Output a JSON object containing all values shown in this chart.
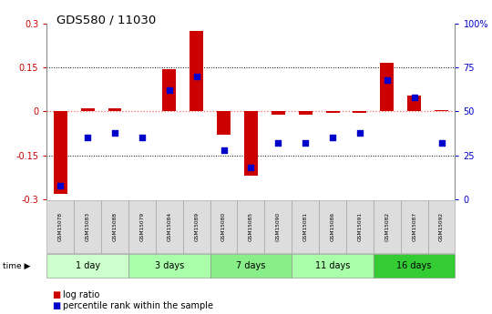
{
  "title": "GDS580 / 11030",
  "samples": [
    "GSM15078",
    "GSM15083",
    "GSM15088",
    "GSM15079",
    "GSM15084",
    "GSM15089",
    "GSM15080",
    "GSM15085",
    "GSM15090",
    "GSM15081",
    "GSM15086",
    "GSM15091",
    "GSM15082",
    "GSM15087",
    "GSM15092"
  ],
  "log_ratio": [
    -0.28,
    0.01,
    0.01,
    0.0,
    0.145,
    0.275,
    -0.08,
    -0.22,
    -0.01,
    -0.01,
    -0.005,
    -0.005,
    0.165,
    0.055,
    0.005
  ],
  "percentile_rank": [
    8,
    35,
    38,
    35,
    62,
    70,
    28,
    18,
    32,
    32,
    35,
    38,
    68,
    58,
    32
  ],
  "groups": [
    {
      "label": "1 day",
      "start": 0,
      "end": 3,
      "color": "#ccffcc"
    },
    {
      "label": "3 days",
      "start": 3,
      "end": 6,
      "color": "#aaffaa"
    },
    {
      "label": "7 days",
      "start": 6,
      "end": 9,
      "color": "#88ee88"
    },
    {
      "label": "11 days",
      "start": 9,
      "end": 12,
      "color": "#aaffaa"
    },
    {
      "label": "16 days",
      "start": 12,
      "end": 15,
      "color": "#33cc33"
    }
  ],
  "ylim_left": [
    -0.3,
    0.3
  ],
  "ylim_right": [
    0,
    100
  ],
  "yticks_left": [
    -0.3,
    -0.15,
    0.0,
    0.15,
    0.3
  ],
  "yticks_right": [
    0,
    25,
    50,
    75,
    100
  ],
  "ytick_labels_right": [
    "0",
    "25",
    "50",
    "75",
    "100%"
  ],
  "bar_color": "#cc0000",
  "dot_color": "#0000cc",
  "zero_line_color": "#ff6666",
  "bar_width": 0.5,
  "bg_color": "#ffffff"
}
